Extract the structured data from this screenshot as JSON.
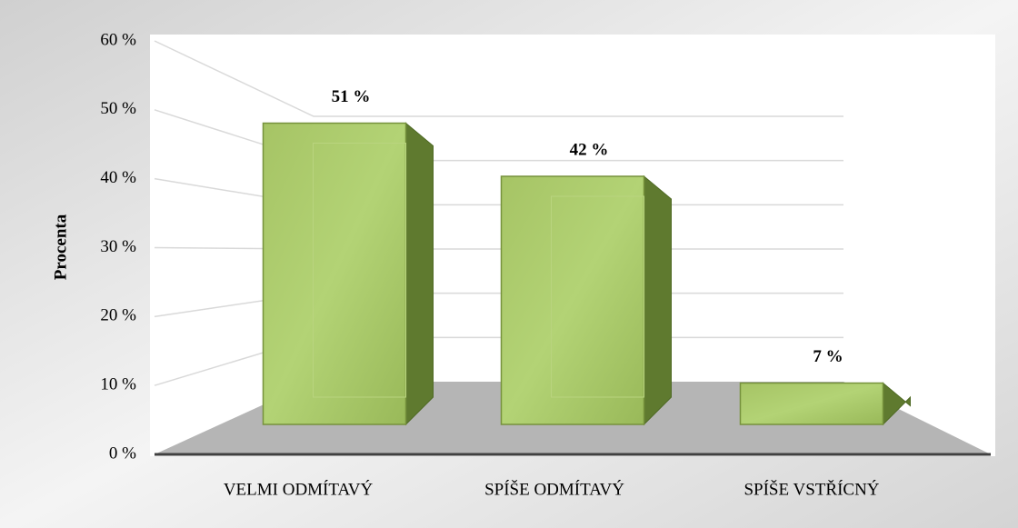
{
  "chart_data": {
    "type": "bar",
    "y_axis_label": "Procenta",
    "categories": [
      "VELMI ODMÍTAVÝ",
      "SPÍŠE ODMÍTAVÝ",
      "SPÍŠE VSTŘÍCNÝ"
    ],
    "values": [
      51,
      42,
      7
    ],
    "value_labels": [
      "51 %",
      "42 %",
      "7 %"
    ],
    "color": "#9bbb59",
    "ylim": [
      0,
      60
    ],
    "yticks": [
      {
        "value": 0,
        "label": "0 %"
      },
      {
        "value": 10,
        "label": "10 %"
      },
      {
        "value": 20,
        "label": "20 %"
      },
      {
        "value": 30,
        "label": "30 %"
      },
      {
        "value": 40,
        "label": "40 %"
      },
      {
        "value": 50,
        "label": "50 %"
      },
      {
        "value": 60,
        "label": "60 %"
      }
    ],
    "grid": true
  }
}
